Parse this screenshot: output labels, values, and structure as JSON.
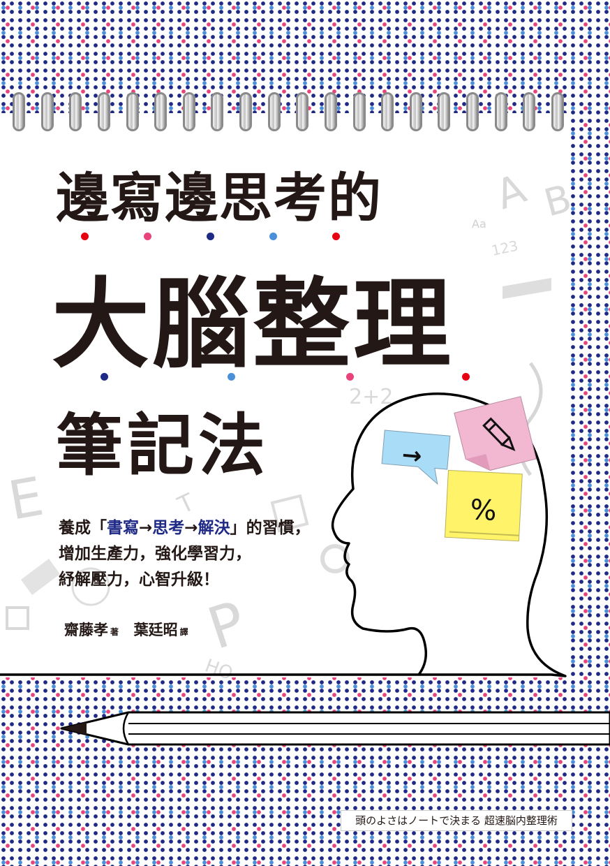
{
  "title": {
    "line1": "邊寫邊思考的",
    "line2": "大腦整理",
    "line3": "筆記法"
  },
  "tagline": {
    "prefix": "養成「",
    "step1": "書寫",
    "arrow1": "→",
    "step2": "思考",
    "arrow2": "→",
    "step3": "解決",
    "suffix": "」的習慣，",
    "line2": "增加生產力，強化學習力，",
    "line3": "紓解壓力，心智升級！"
  },
  "authors": {
    "author_name": "齋藤孝",
    "author_role": "著",
    "translator_name": "葉廷昭",
    "translator_role": "譯"
  },
  "notes": {
    "arrow_note": "→",
    "percent_note": "%"
  },
  "background_glyphs": [
    "A",
    "Aa",
    "123",
    "2+2",
    "E",
    "P",
    "HO",
    "B",
    "T"
  ],
  "series_label": "頭のよさはノートで決まる 超速脳内整理術",
  "colors": {
    "navy_dot": "#1f2a86",
    "pink_dot": "#e8437b",
    "blue_dot": "#4a90d9",
    "red_dot": "#e60012",
    "ink": "#231815",
    "sticky_blue": "#a9dcf7",
    "sticky_pink": "#f2b8d1",
    "sticky_yellow": "#fff36a"
  }
}
